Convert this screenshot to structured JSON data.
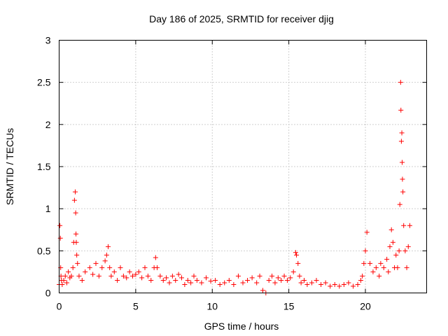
{
  "chart_data": {
    "type": "scatter",
    "title": "Day 186 of 2025, SRMTID for receiver djig",
    "xlabel": "GPS time / hours",
    "ylabel": "SRMTID / TECUs",
    "xlim": [
      0,
      24
    ],
    "ylim": [
      0,
      3
    ],
    "x_ticks": [
      0,
      5,
      10,
      15,
      20
    ],
    "x_tick_labels": [
      "0",
      "5",
      "10",
      "15",
      "20"
    ],
    "y_ticks": [
      0,
      0.5,
      1,
      1.5,
      2,
      2.5,
      3
    ],
    "y_tick_labels": [
      "0",
      "0.5",
      "1",
      "1.5",
      "2",
      "2.5",
      "3"
    ],
    "grid": true,
    "marker": "+",
    "color": "#ff0000",
    "series": [
      {
        "name": "SRMTID",
        "x": [
          0.0,
          0.05,
          0.08,
          0.1,
          0.12,
          0.15,
          0.2,
          0.3,
          0.4,
          0.5,
          0.6,
          0.7,
          0.8,
          0.9,
          0.95,
          1.0,
          1.05,
          1.08,
          1.1,
          1.12,
          1.15,
          1.2,
          1.3,
          1.5,
          1.7,
          2.0,
          2.2,
          2.4,
          2.6,
          2.8,
          3.0,
          3.1,
          3.2,
          3.3,
          3.4,
          3.6,
          3.8,
          4.0,
          4.2,
          4.4,
          4.6,
          4.8,
          5.0,
          5.2,
          5.4,
          5.6,
          5.8,
          6.0,
          6.2,
          6.3,
          6.4,
          6.6,
          6.8,
          7.0,
          7.2,
          7.4,
          7.6,
          7.8,
          8.0,
          8.2,
          8.4,
          8.6,
          8.8,
          9.0,
          9.3,
          9.6,
          9.9,
          10.2,
          10.5,
          10.8,
          11.1,
          11.4,
          11.7,
          12.0,
          12.3,
          12.6,
          12.9,
          13.1,
          13.3,
          13.5,
          13.7,
          13.9,
          14.1,
          14.3,
          14.5,
          14.7,
          14.9,
          15.1,
          15.3,
          15.45,
          15.5,
          15.6,
          15.7,
          15.8,
          16.0,
          16.2,
          16.5,
          16.8,
          17.1,
          17.4,
          17.7,
          18.0,
          18.3,
          18.6,
          18.9,
          19.2,
          19.5,
          19.7,
          19.8,
          19.9,
          20.0,
          20.1,
          20.3,
          20.5,
          20.7,
          20.9,
          21.0,
          21.2,
          21.4,
          21.5,
          21.6,
          21.7,
          21.8,
          21.9,
          22.0,
          22.1,
          22.2,
          22.25,
          22.3,
          22.32,
          22.35,
          22.38,
          22.4,
          22.42,
          22.45,
          22.5,
          22.6,
          22.7,
          22.8,
          22.9
        ],
        "y": [
          0.1,
          0.8,
          0.65,
          0.3,
          0.2,
          0.15,
          0.1,
          0.15,
          0.2,
          0.12,
          0.25,
          0.18,
          0.2,
          0.3,
          0.6,
          1.1,
          1.2,
          0.95,
          0.7,
          0.6,
          0.45,
          0.35,
          0.2,
          0.15,
          0.25,
          0.3,
          0.22,
          0.35,
          0.2,
          0.3,
          0.38,
          0.45,
          0.55,
          0.3,
          0.2,
          0.25,
          0.15,
          0.3,
          0.2,
          0.18,
          0.25,
          0.2,
          0.22,
          0.25,
          0.18,
          0.3,
          0.2,
          0.15,
          0.3,
          0.42,
          0.3,
          0.2,
          0.15,
          0.18,
          0.12,
          0.2,
          0.15,
          0.22,
          0.18,
          0.1,
          0.15,
          0.12,
          0.2,
          0.15,
          0.12,
          0.18,
          0.14,
          0.15,
          0.1,
          0.12,
          0.15,
          0.1,
          0.2,
          0.12,
          0.15,
          0.18,
          0.12,
          0.2,
          0.03,
          0.0,
          0.15,
          0.2,
          0.12,
          0.18,
          0.15,
          0.2,
          0.15,
          0.18,
          0.25,
          0.48,
          0.45,
          0.35,
          0.2,
          0.12,
          0.15,
          0.1,
          0.12,
          0.15,
          0.1,
          0.12,
          0.08,
          0.1,
          0.08,
          0.1,
          0.12,
          0.08,
          0.1,
          0.15,
          0.2,
          0.35,
          0.5,
          0.72,
          0.35,
          0.25,
          0.3,
          0.2,
          0.35,
          0.3,
          0.4,
          0.25,
          0.55,
          0.75,
          0.6,
          0.3,
          0.45,
          0.3,
          0.5,
          1.05,
          2.5,
          2.17,
          1.8,
          1.9,
          1.55,
          1.35,
          1.2,
          0.8,
          0.5,
          0.3,
          0.55,
          0.8
        ]
      }
    ]
  }
}
